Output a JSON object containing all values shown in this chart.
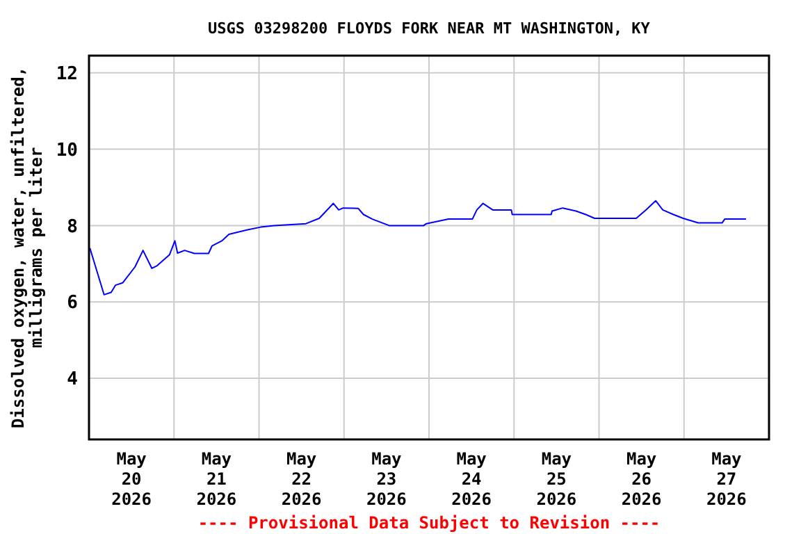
{
  "chart_data": {
    "type": "line",
    "title": "USGS 03298200 FLOYDS FORK NEAR MT WASHINGTON, KY",
    "ylabel": "Dissolved oxygen, water, unfiltered,\nmilligrams per liter",
    "annotations": [
      "---- Provisional Data Subject to Revision ----"
    ],
    "xlim": [
      "2026-05-20T00:00",
      "2026-05-28T00:00"
    ],
    "xticks": [
      {
        "value": "2026-05-20T12:00",
        "label": "May\n20\n2026"
      },
      {
        "value": "2026-05-21T00:00",
        "label": null
      },
      {
        "value": "2026-05-21T12:00",
        "label": "May\n21\n2026"
      },
      {
        "value": "2026-05-22T00:00",
        "label": null
      },
      {
        "value": "2026-05-22T12:00",
        "label": "May\n22\n2026"
      },
      {
        "value": "2026-05-23T00:00",
        "label": null
      },
      {
        "value": "2026-05-23T12:00",
        "label": "May\n23\n2026"
      },
      {
        "value": "2026-05-24T00:00",
        "label": null
      },
      {
        "value": "2026-05-24T12:00",
        "label": "May\n24\n2026"
      },
      {
        "value": "2026-05-25T00:00",
        "label": null
      },
      {
        "value": "2026-05-25T12:00",
        "label": "May\n25\n2026"
      },
      {
        "value": "2026-05-26T00:00",
        "label": null
      },
      {
        "value": "2026-05-26T12:00",
        "label": "May\n26\n2026"
      },
      {
        "value": "2026-05-27T00:00",
        "label": null
      },
      {
        "value": "2026-05-27T12:00",
        "label": "May\n27\n2026"
      }
    ],
    "ylim": [
      2.4,
      12.45
    ],
    "yticks": [
      4,
      6,
      8,
      10,
      12
    ],
    "grid": true,
    "x": [
      "2026-05-20T00:15",
      "2026-05-20T04:15",
      "2026-05-20T06:15",
      "2026-05-20T07:30",
      "2026-05-20T09:30",
      "2026-05-20T13:00",
      "2026-05-20T15:15",
      "2026-05-20T17:45",
      "2026-05-20T19:15",
      "2026-05-20T22:45",
      "2026-05-21T00:15",
      "2026-05-21T01:00",
      "2026-05-21T03:00",
      "2026-05-21T05:45",
      "2026-05-21T09:45",
      "2026-05-21T10:45",
      "2026-05-21T13:30",
      "2026-05-21T15:30",
      "2026-05-21T20:45",
      "2026-05-22T00:30",
      "2026-05-22T04:15",
      "2026-05-22T13:15",
      "2026-05-22T17:00",
      "2026-05-22T21:00",
      "2026-05-22T22:30",
      "2026-05-22T23:45",
      "2026-05-23T04:00",
      "2026-05-23T05:30",
      "2026-05-23T08:00",
      "2026-05-23T12:45",
      "2026-05-23T22:30",
      "2026-05-23T23:15",
      "2026-05-24T05:30",
      "2026-05-24T12:15",
      "2026-05-24T13:30",
      "2026-05-24T15:15",
      "2026-05-24T18:00",
      "2026-05-24T23:15",
      "2026-05-24T23:30",
      "2026-05-25T10:30",
      "2026-05-25T10:45",
      "2026-05-25T13:45",
      "2026-05-25T17:30",
      "2026-05-25T20:15",
      "2026-05-25T22:45",
      "2026-05-26T10:30",
      "2026-05-26T13:15",
      "2026-05-26T16:00",
      "2026-05-26T18:00",
      "2026-05-26T21:00",
      "2026-05-26T23:45",
      "2026-05-27T04:00",
      "2026-05-27T10:45",
      "2026-05-27T11:30",
      "2026-05-27T17:30"
    ],
    "series": [
      {
        "color": "#0000ff",
        "values": [
          7.41,
          6.19,
          6.25,
          6.44,
          6.5,
          6.92,
          7.35,
          6.88,
          6.95,
          7.24,
          7.6,
          7.28,
          7.35,
          7.27,
          7.27,
          7.47,
          7.6,
          7.77,
          7.89,
          7.96,
          8.0,
          8.05,
          8.19,
          8.58,
          8.41,
          8.46,
          8.45,
          8.29,
          8.17,
          8.0,
          8.0,
          8.05,
          8.17,
          8.17,
          8.41,
          8.58,
          8.41,
          8.41,
          8.29,
          8.29,
          8.38,
          8.46,
          8.38,
          8.29,
          8.19,
          8.19,
          8.41,
          8.65,
          8.41,
          8.29,
          8.19,
          8.07,
          8.07,
          8.17,
          8.17
        ]
      }
    ]
  }
}
